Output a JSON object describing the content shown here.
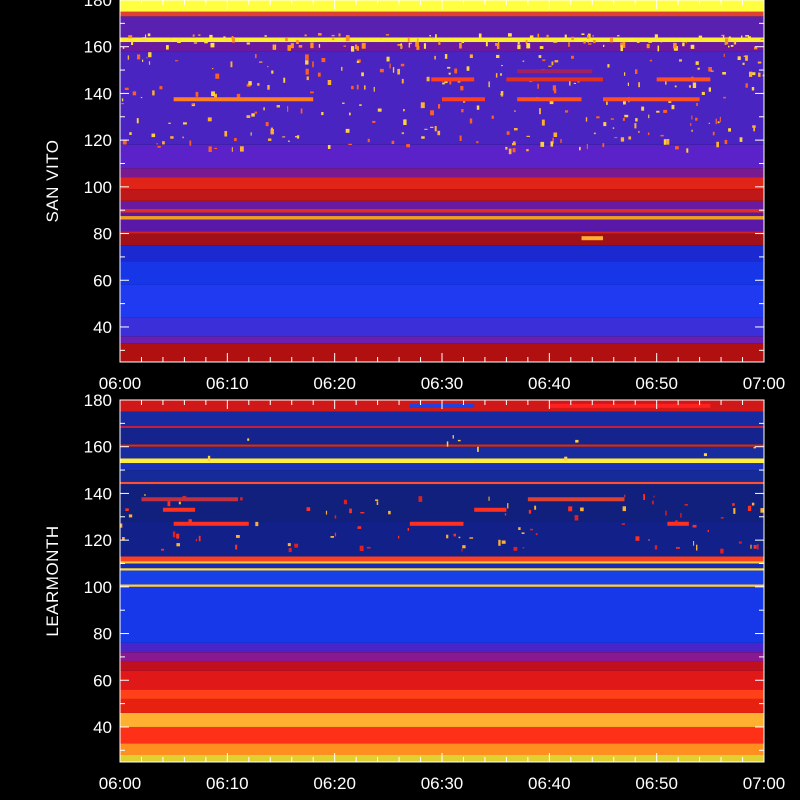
{
  "chart_data": [
    {
      "type": "heatmap",
      "ylabel": "SAN VITO",
      "ylim": [
        25,
        180
      ],
      "yticks": [
        40,
        60,
        80,
        100,
        120,
        140,
        160,
        180
      ],
      "xticks": [
        "06:00",
        "06:10",
        "06:20",
        "06:30",
        "06:40",
        "06:50",
        "07:00"
      ],
      "xlim": [
        "06:00",
        "07:00"
      ],
      "bands": [
        {
          "y0": 25,
          "y1": 33,
          "color": "#b01010"
        },
        {
          "y0": 33,
          "y1": 36,
          "color": "#6a1fb0"
        },
        {
          "y0": 36,
          "y1": 44,
          "color": "#3a2fd8"
        },
        {
          "y0": 44,
          "y1": 58,
          "color": "#1f3af0"
        },
        {
          "y0": 58,
          "y1": 68,
          "color": "#1636e8"
        },
        {
          "y0": 68,
          "y1": 75,
          "color": "#1a2ad0"
        },
        {
          "y0": 75,
          "y1": 80,
          "color": "#a01018"
        },
        {
          "y0": 80,
          "y1": 81,
          "color": "#d02020"
        },
        {
          "y0": 81,
          "y1": 86,
          "color": "#5a18a8"
        },
        {
          "y0": 86,
          "y1": 87.5,
          "color": "#f0a020"
        },
        {
          "y0": 87.5,
          "y1": 89,
          "color": "#5a18a8"
        },
        {
          "y0": 89,
          "y1": 90.5,
          "color": "#e03020"
        },
        {
          "y0": 90.5,
          "y1": 94,
          "color": "#6a1aa0"
        },
        {
          "y0": 94,
          "y1": 99,
          "color": "#c01818"
        },
        {
          "y0": 99,
          "y1": 104,
          "color": "#e02418"
        },
        {
          "y0": 104,
          "y1": 108,
          "color": "#7a1a90"
        },
        {
          "y0": 108,
          "y1": 118,
          "color": "#5a22c8"
        },
        {
          "y0": 118,
          "y1": 158,
          "color": "#4a24c0"
        },
        {
          "y0": 158,
          "y1": 162,
          "color": "#6a1aa0"
        },
        {
          "y0": 162,
          "y1": 164,
          "color": "#ffee30"
        },
        {
          "y0": 164,
          "y1": 173,
          "color": "#5a20b0"
        },
        {
          "y0": 173,
          "y1": 175,
          "color": "#e04030"
        },
        {
          "y0": 175,
          "y1": 180,
          "color": "#ffff40"
        }
      ],
      "streaks": [
        {
          "y": 137.5,
          "x0": "06:05",
          "x1": "06:18",
          "color": "#ff8020"
        },
        {
          "y": 137.5,
          "x0": "06:30",
          "x1": "06:34",
          "color": "#ff4020"
        },
        {
          "y": 137.5,
          "x0": "06:37",
          "x1": "06:43",
          "color": "#ff5020"
        },
        {
          "y": 137.5,
          "x0": "06:45",
          "x1": "06:54",
          "color": "#ff5020"
        },
        {
          "y": 146,
          "x0": "06:29",
          "x1": "06:33",
          "color": "#ff4020"
        },
        {
          "y": 146,
          "x0": "06:36",
          "x1": "06:45",
          "color": "#e03020"
        },
        {
          "y": 146,
          "x0": "06:50",
          "x1": "06:55",
          "color": "#ff5020"
        },
        {
          "y": 149.5,
          "x0": "06:37",
          "x1": "06:44",
          "color": "#a02060"
        },
        {
          "y": 78,
          "x0": "06:43",
          "x1": "06:45",
          "color": "#ffb030"
        }
      ]
    },
    {
      "type": "heatmap",
      "ylabel": "LEARMONTH",
      "ylim": [
        25,
        180
      ],
      "yticks": [
        40,
        60,
        80,
        100,
        120,
        140,
        160,
        180
      ],
      "xticks": [
        "06:00",
        "06:10",
        "06:20",
        "06:30",
        "06:40",
        "06:50",
        "07:00"
      ],
      "xlim": [
        "06:00",
        "07:00"
      ],
      "bands": [
        {
          "y0": 25,
          "y1": 28,
          "color": "#e0d030"
        },
        {
          "y0": 28,
          "y1": 33,
          "color": "#ff9020"
        },
        {
          "y0": 33,
          "y1": 40,
          "color": "#ff3018"
        },
        {
          "y0": 40,
          "y1": 46,
          "color": "#ffb030"
        },
        {
          "y0": 46,
          "y1": 52,
          "color": "#e82010"
        },
        {
          "y0": 52,
          "y1": 56,
          "color": "#ff4018"
        },
        {
          "y0": 56,
          "y1": 64,
          "color": "#e01818"
        },
        {
          "y0": 64,
          "y1": 68,
          "color": "#c01020"
        },
        {
          "y0": 68,
          "y1": 72,
          "color": "#8a1890"
        },
        {
          "y0": 72,
          "y1": 76,
          "color": "#4a24c8"
        },
        {
          "y0": 76,
          "y1": 100,
          "color": "#1638e8"
        },
        {
          "y0": 100,
          "y1": 101,
          "color": "#ffcc40"
        },
        {
          "y0": 101,
          "y1": 107,
          "color": "#1840e8"
        },
        {
          "y0": 107,
          "y1": 108,
          "color": "#ffe040"
        },
        {
          "y0": 108,
          "y1": 110,
          "color": "#1a2ab0"
        },
        {
          "y0": 110,
          "y1": 111,
          "color": "#ffcc40"
        },
        {
          "y0": 111,
          "y1": 113,
          "color": "#ff4020"
        },
        {
          "y0": 113,
          "y1": 128,
          "color": "#12208a"
        },
        {
          "y0": 128,
          "y1": 144,
          "color": "#10207c"
        },
        {
          "y0": 144,
          "y1": 145,
          "color": "#ff5030"
        },
        {
          "y0": 145,
          "y1": 150,
          "color": "#162a98"
        },
        {
          "y0": 150,
          "y1": 153,
          "color": "#1a30b8"
        },
        {
          "y0": 153,
          "y1": 155,
          "color": "#ffee40"
        },
        {
          "y0": 155,
          "y1": 160,
          "color": "#182ca0"
        },
        {
          "y0": 160,
          "y1": 161,
          "color": "#d03020"
        },
        {
          "y0": 161,
          "y1": 168,
          "color": "#14248c"
        },
        {
          "y0": 168,
          "y1": 169,
          "color": "#c02040"
        },
        {
          "y0": 169,
          "y1": 175,
          "color": "#182aa0"
        },
        {
          "y0": 175,
          "y1": 180,
          "color": "#d01818"
        }
      ],
      "streaks": [
        {
          "y": 137.5,
          "x0": "06:02",
          "x1": "06:11",
          "color": "#c03040"
        },
        {
          "y": 137.5,
          "x0": "06:38",
          "x1": "06:47",
          "color": "#e04030"
        },
        {
          "y": 133,
          "x0": "06:04",
          "x1": "06:07",
          "color": "#ff3020"
        },
        {
          "y": 133,
          "x0": "06:33",
          "x1": "06:36",
          "color": "#ff3020"
        },
        {
          "y": 127,
          "x0": "06:05",
          "x1": "06:12",
          "color": "#ff3020"
        },
        {
          "y": 127,
          "x0": "06:27",
          "x1": "06:32",
          "color": "#ff3020"
        },
        {
          "y": 127,
          "x0": "06:51",
          "x1": "06:53",
          "color": "#ff3020"
        },
        {
          "y": 177.5,
          "x0": "06:40",
          "x1": "06:55",
          "color": "#ff2020"
        },
        {
          "y": 177.5,
          "x0": "06:27",
          "x1": "06:33",
          "color": "#2040e0"
        }
      ]
    }
  ]
}
